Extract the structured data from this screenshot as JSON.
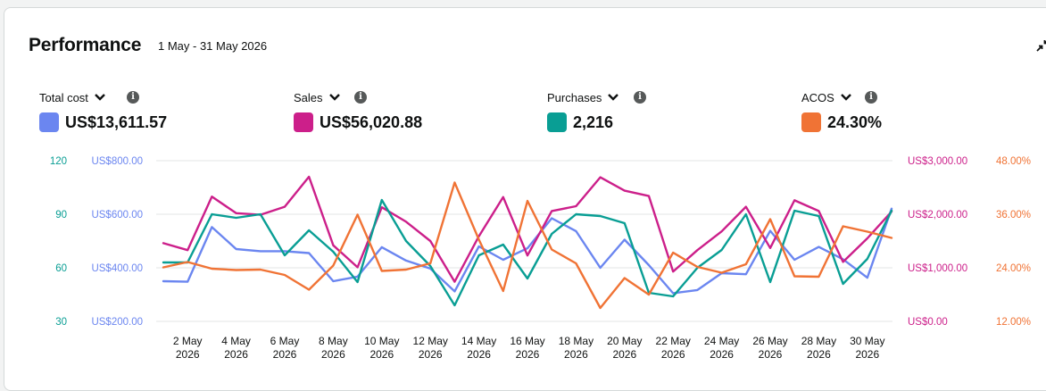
{
  "header": {
    "title": "Performance",
    "date_range": "1 May - 31 May 2026"
  },
  "metrics": [
    {
      "label": "Total cost",
      "value": "US$13,611.57",
      "color": "#6b86f0",
      "icon": "chevron-down-icon",
      "info_icon": "info-icon"
    },
    {
      "label": "Sales",
      "value": "US$56,020.88",
      "color": "#cc1f8a",
      "icon": "chevron-down-icon",
      "info_icon": "info-icon"
    },
    {
      "label": "Purchases",
      "value": "2,216",
      "color": "#099e94",
      "icon": "chevron-down-icon",
      "info_icon": "info-icon"
    },
    {
      "label": "ACOS",
      "value": "24.30%",
      "color": "#f07335",
      "icon": "chevron-down-icon",
      "info_icon": "info-icon"
    }
  ],
  "chart_data": {
    "type": "line",
    "x_tick_labels": [
      [
        "2 May",
        "2026"
      ],
      [
        "4 May",
        "2026"
      ],
      [
        "6 May",
        "2026"
      ],
      [
        "8 May",
        "2026"
      ],
      [
        "10 May",
        "2026"
      ],
      [
        "12 May",
        "2026"
      ],
      [
        "14 May",
        "2026"
      ],
      [
        "16 May",
        "2026"
      ],
      [
        "18 May",
        "2026"
      ],
      [
        "20 May",
        "2026"
      ],
      [
        "22 May",
        "2026"
      ],
      [
        "24 May",
        "2026"
      ],
      [
        "26 May",
        "2026"
      ],
      [
        "28 May",
        "2026"
      ],
      [
        "30 May",
        "2026"
      ]
    ],
    "x": [
      "1 May",
      "2 May",
      "3 May",
      "4 May",
      "5 May",
      "6 May",
      "7 May",
      "8 May",
      "9 May",
      "10 May",
      "11 May",
      "12 May",
      "13 May",
      "14 May",
      "15 May",
      "16 May",
      "17 May",
      "18 May",
      "19 May",
      "20 May",
      "21 May",
      "22 May",
      "23 May",
      "24 May",
      "25 May",
      "26 May",
      "27 May",
      "28 May",
      "29 May",
      "30 May",
      "31 May"
    ],
    "grid": true,
    "axes": {
      "purchases": {
        "ticks": [
          "120",
          "90",
          "60",
          "30"
        ],
        "range": [
          30,
          120
        ],
        "color": "#099e94"
      },
      "total_cost": {
        "ticks": [
          "US$800.00",
          "US$600.00",
          "US$400.00",
          "US$200.00"
        ],
        "range": [
          200,
          800
        ],
        "color": "#6b86f0"
      },
      "sales": {
        "ticks": [
          "US$3,000.00",
          "US$2,000.00",
          "US$1,000.00",
          "US$0.00"
        ],
        "range": [
          0,
          3000
        ],
        "color": "#cc1f8a"
      },
      "acos": {
        "ticks": [
          "48.00%",
          "36.00%",
          "24.00%",
          "12.00%"
        ],
        "range": [
          12,
          48
        ],
        "color": "#f07335"
      }
    },
    "series": [
      {
        "name": "Total cost",
        "axis": "total_cost",
        "color": "#6b86f0",
        "values": [
          350,
          348,
          552,
          470,
          462,
          462,
          455,
          350,
          367,
          477,
          427,
          397,
          312,
          480,
          430,
          473,
          585,
          537,
          400,
          505,
          410,
          305,
          317,
          380,
          376,
          538,
          430,
          478,
          432,
          363,
          621
        ]
      },
      {
        "name": "Sales",
        "axis": "sales",
        "color": "#cc1f8a",
        "values": [
          1460,
          1330,
          2330,
          2020,
          1990,
          2140,
          2700,
          1420,
          1010,
          2130,
          1860,
          1500,
          740,
          1590,
          2320,
          1230,
          2060,
          2150,
          2690,
          2440,
          2340,
          930,
          1330,
          1680,
          2140,
          1370,
          2260,
          2060,
          1110,
          1550,
          2050
        ]
      },
      {
        "name": "Purchases",
        "axis": "purchases",
        "color": "#099e94",
        "values": [
          63,
          63,
          90,
          88,
          90,
          67,
          81,
          69,
          52,
          98,
          75,
          61,
          39,
          67,
          73,
          54,
          79,
          90,
          89,
          85,
          46,
          44,
          60,
          70,
          90,
          52,
          92,
          89,
          51,
          65,
          92
        ]
      },
      {
        "name": "ACOS",
        "axis": "acos",
        "color": "#f07335",
        "values": [
          24.1,
          25.3,
          23.8,
          23.5,
          23.6,
          22.4,
          19.1,
          24.5,
          35.9,
          23.3,
          23.6,
          25.0,
          43.1,
          30.3,
          18.8,
          39.0,
          28.1,
          25.0,
          15.0,
          21.7,
          18.0,
          27.4,
          24.2,
          22.9,
          24.8,
          34.9,
          22.1,
          22.0,
          33.3,
          32.1,
          30.7
        ]
      }
    ]
  }
}
